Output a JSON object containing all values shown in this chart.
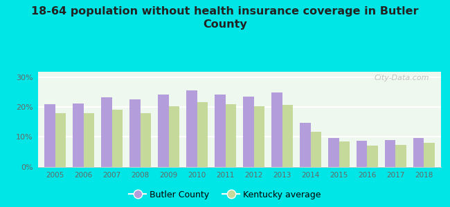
{
  "years": [
    "2005",
    "2006",
    "2007",
    "2008",
    "2009",
    "2010",
    "2011",
    "2012",
    "2013",
    "2014",
    "2015",
    "2016",
    "2017",
    "2018"
  ],
  "butler_county": [
    21.0,
    21.2,
    23.4,
    22.5,
    24.2,
    25.6,
    24.2,
    23.6,
    25.0,
    14.7,
    9.6,
    8.7,
    9.0,
    9.6
  ],
  "kentucky_avg": [
    18.0,
    18.0,
    19.2,
    18.0,
    20.3,
    21.7,
    21.0,
    20.3,
    20.8,
    11.8,
    8.4,
    7.1,
    7.2,
    7.9
  ],
  "butler_color": "#b39ddb",
  "kentucky_color": "#c5d99b",
  "background_color": "#00e5e5",
  "plot_bg_color": "#f0faf0",
  "title": "18-64 population without health insurance coverage in Butler\nCounty",
  "title_fontsize": 11.5,
  "title_fontweight": "bold",
  "ylabel_ticks": [
    "0%",
    "10%",
    "20%",
    "30%"
  ],
  "ytick_vals": [
    0,
    10,
    20,
    30
  ],
  "ylim": [
    0,
    32
  ],
  "legend_butler": "Butler County",
  "legend_ky": "Kentucky average",
  "bar_width": 0.38,
  "watermark": "City-Data.com"
}
